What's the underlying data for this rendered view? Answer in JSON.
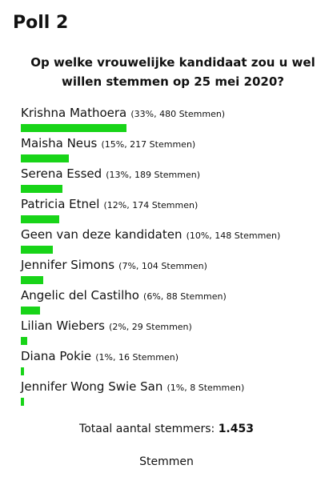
{
  "poll": {
    "title": "Poll 2",
    "question": "Op welke vrouwelijke kandidaat zou u wel willen stemmen op 25 mei 2020?",
    "bar_color": "#18d418",
    "options": [
      {
        "name": "Krishna Mathoera",
        "stats": "(33%, 480 Stemmen)",
        "percent": 33
      },
      {
        "name": "Maisha Neus",
        "stats": "(15%, 217 Stemmen)",
        "percent": 15
      },
      {
        "name": "Serena Essed",
        "stats": "(13%, 189 Stemmen)",
        "percent": 13
      },
      {
        "name": "Patricia Etnel",
        "stats": "(12%, 174 Stemmen)",
        "percent": 12
      },
      {
        "name": "Geen van deze kandidaten",
        "stats": "(10%, 148 Stemmen)",
        "percent": 10
      },
      {
        "name": "Jennifer Simons",
        "stats": "(7%, 104 Stemmen)",
        "percent": 7
      },
      {
        "name": "Angelic del Castilho",
        "stats": "(6%, 88 Stemmen)",
        "percent": 6
      },
      {
        "name": "Lilian Wiebers",
        "stats": "(2%, 29 Stemmen)",
        "percent": 2
      },
      {
        "name": "Diana Pokie",
        "stats": "(1%, 16 Stemmen)",
        "percent": 1
      },
      {
        "name": "Jennifer Wong Swie San",
        "stats": "(1%, 8 Stemmen)",
        "percent": 1
      }
    ],
    "total_label": "Totaal aantal stemmers:",
    "total_value": "1.453",
    "vote_link": "Stemmen"
  }
}
